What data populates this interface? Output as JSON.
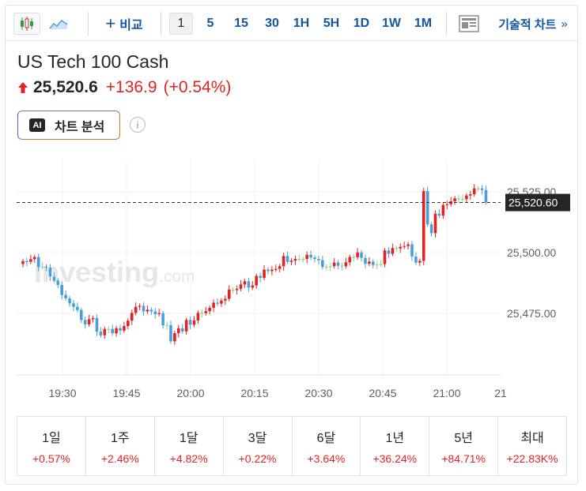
{
  "toolbar": {
    "compare_label": "비교",
    "timeframes": [
      "1",
      "5",
      "15",
      "30",
      "1H",
      "5H",
      "1D",
      "1W",
      "1M"
    ],
    "active_timeframe": "1",
    "technical_label": "기술적 차트",
    "technical_chevron": "»"
  },
  "instrument": {
    "name": "US Tech 100 Cash",
    "price": "25,520.6",
    "change": "+136.9",
    "change_pct": "(+0.54%)",
    "direction_icon": "arrow-up-icon"
  },
  "ai": {
    "badge": "AI",
    "label": "차트 분석"
  },
  "info_icon": "i",
  "watermark": {
    "brand": "Investing",
    "suffix": ".com"
  },
  "chart_data": {
    "type": "candlestick",
    "x_ticks": [
      "19:30",
      "19:45",
      "20:00",
      "20:15",
      "20:30",
      "20:45",
      "21:00",
      "21"
    ],
    "y_ticks": [
      "25,525.00",
      "25,500.00",
      "25,475.00"
    ],
    "y_tick_values": [
      25525,
      25500,
      25475
    ],
    "last_price_label": "25,520.60",
    "last_price": 25520.6,
    "grid": true,
    "colors": {
      "up": "#e02424",
      "down": "#4a9fd8",
      "neutral": "#8fd18f"
    },
    "closes": [
      25496.5,
      25496.2,
      25497.3,
      25498.2,
      25494.1,
      25494.2,
      25493.8,
      25490.1,
      25488.5,
      25486.7,
      25482.6,
      25481.2,
      25479.1,
      25477.7,
      25476.4,
      25472.3,
      25470.5,
      25472.6,
      25473.1,
      25467.5,
      25466.0,
      25468.6,
      25468.6,
      25466.8,
      25468.9,
      25467.9,
      25469.8,
      25472.0,
      25475.2,
      25477.7,
      25478.1,
      25475.8,
      25476.5,
      25475.8,
      25474.7,
      25475.1,
      25470.1,
      25470.2,
      25463.5,
      25466.9,
      25468.9,
      25467.6,
      25472.3,
      25470.3,
      25472.1,
      25475.2,
      25475.1,
      25475.9,
      25477.3,
      25479.4,
      25479.0,
      25480.3,
      25481.0,
      25484.8,
      25484.6,
      25485.1,
      25486.9,
      25488.2,
      25485.6,
      25486.5,
      25490.4,
      25489.6,
      25493.0,
      25492.4,
      25493.0,
      25493.3,
      25494.4,
      25498.6,
      25496.2,
      25496.7,
      25497.4,
      25497.3,
      25497.4,
      25499.1,
      25498.0,
      25497.4,
      25496.9,
      25494.1,
      25494.2,
      25494.4,
      25495.9,
      25494.6,
      25494.4,
      25496.0,
      25498.2,
      25498.1,
      25500.1,
      25497.8,
      25495.4,
      25496.3,
      25494.9,
      25495.1,
      25495.3,
      25500.9,
      25499.5,
      25501.9,
      25501.7,
      25502.4,
      25502.7,
      25503.4,
      25498.4,
      25495.9,
      25496.6,
      25525.3,
      25511.6,
      25508.0,
      25516.0,
      25515.2,
      25519.6,
      25519.9,
      25521.1,
      25522.3,
      25522.1,
      25522.0,
      25523.5,
      25524.0,
      25526.4,
      25526.4,
      25525.7,
      25520.6
    ]
  },
  "periods": [
    {
      "label": "1일",
      "value": "+0.57%"
    },
    {
      "label": "1주",
      "value": "+2.46%"
    },
    {
      "label": "1달",
      "value": "+4.82%"
    },
    {
      "label": "3달",
      "value": "+0.22%"
    },
    {
      "label": "6달",
      "value": "+3.64%"
    },
    {
      "label": "1년",
      "value": "+36.24%"
    },
    {
      "label": "5년",
      "value": "+84.71%"
    },
    {
      "label": "최대",
      "value": "+22.83K%"
    }
  ]
}
